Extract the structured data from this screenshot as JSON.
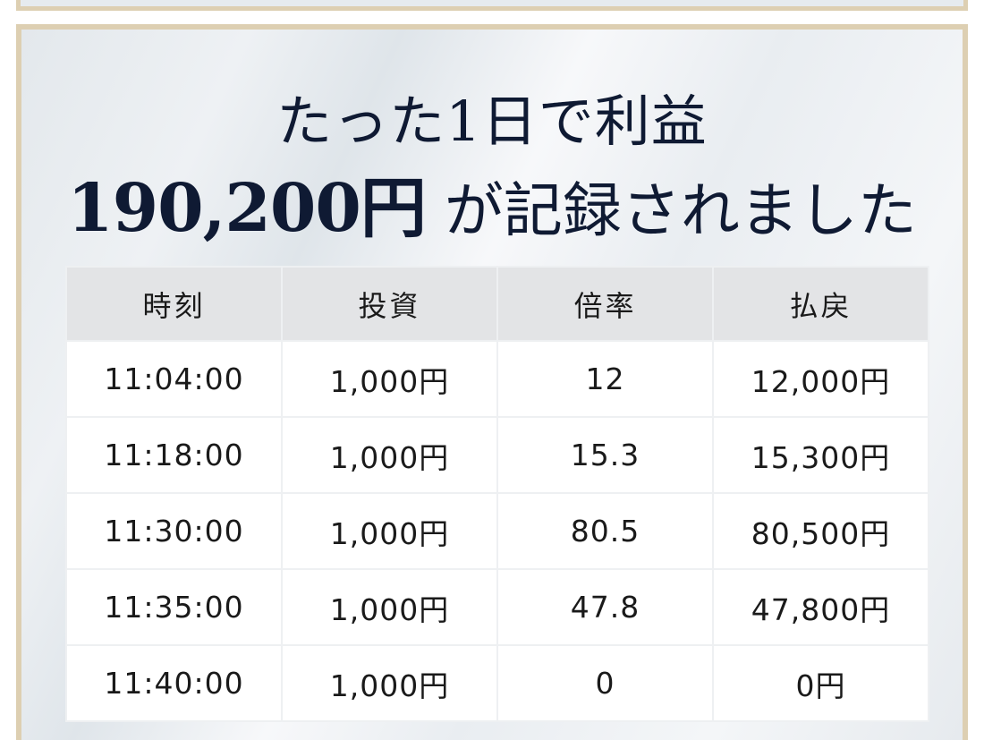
{
  "headline": {
    "line1": "たった1日で利益",
    "amount": "190,200円",
    "line2_rest": "が記録されました"
  },
  "colors": {
    "highlight": "#ffe900",
    "border": "#ddcfb2",
    "text": "#0f1a33"
  },
  "table": {
    "headers": [
      "時刻",
      "投資",
      "倍率",
      "払戻"
    ],
    "rows": [
      [
        "11:04:00",
        "1,000円",
        "12",
        "12,000円"
      ],
      [
        "11:18:00",
        "1,000円",
        "15.3",
        "15,300円"
      ],
      [
        "11:30:00",
        "1,000円",
        "80.5",
        "80,500円"
      ],
      [
        "11:35:00",
        "1,000円",
        "47.8",
        "47,800円"
      ],
      [
        "11:40:00",
        "1,000円",
        "0",
        "0円"
      ]
    ]
  }
}
